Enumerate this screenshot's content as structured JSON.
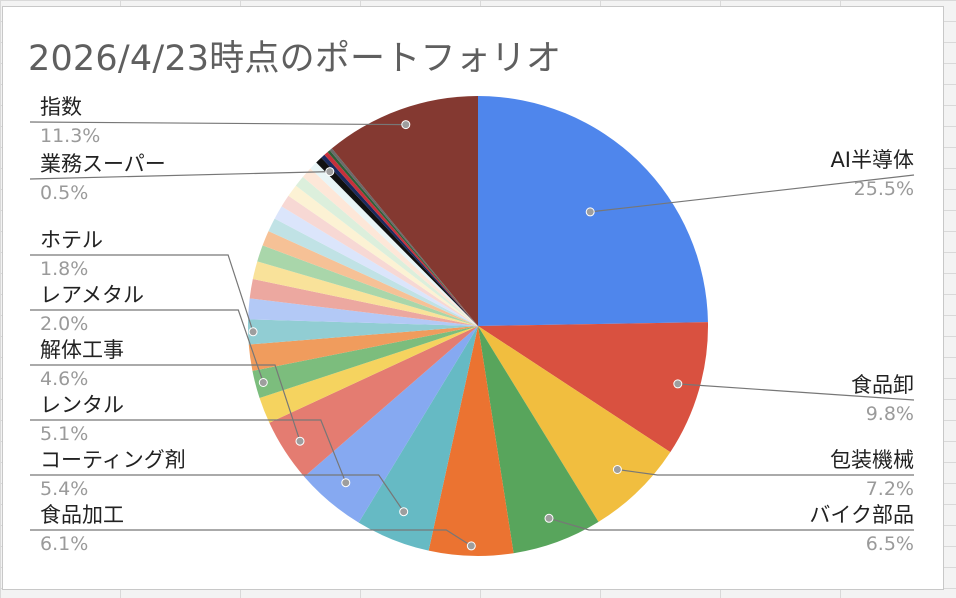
{
  "chart_data": {
    "type": "pie",
    "title": "2026/4/23時点のポートフォリオ",
    "start_angle_deg": 0,
    "direction": "clockwise",
    "slices": [
      {
        "label": "AI半導体",
        "value": 25.5,
        "color": "#4f86ec"
      },
      {
        "label": "食品卸",
        "value": 9.8,
        "color": "#d95140"
      },
      {
        "label": "包装機械",
        "value": 7.2,
        "color": "#f1be3f"
      },
      {
        "label": "バイク部品",
        "value": 6.5,
        "color": "#58a55c"
      },
      {
        "label": "食品加工",
        "value": 6.1,
        "color": "#eb7331"
      },
      {
        "label": "コーティング剤",
        "value": 5.4,
        "color": "#66bac4"
      },
      {
        "label": "レンタル",
        "value": 5.1,
        "color": "#86a9f1"
      },
      {
        "label": "解体工事",
        "value": 4.6,
        "color": "#e47c71"
      },
      {
        "label": "",
        "value": 1.9,
        "color": "#f5d35f"
      },
      {
        "label": "レアメタル",
        "value": 2.0,
        "color": "#7cbd7d"
      },
      {
        "label": "",
        "value": 1.9,
        "color": "#f09c5d"
      },
      {
        "label": "ホテル",
        "value": 1.8,
        "color": "#91cdd3"
      },
      {
        "label": "",
        "value": 1.5,
        "color": "#b3c9f6"
      },
      {
        "label": "",
        "value": 1.4,
        "color": "#eca8a0"
      },
      {
        "label": "",
        "value": 1.3,
        "color": "#f9e29a"
      },
      {
        "label": "",
        "value": 1.2,
        "color": "#a9d6aa"
      },
      {
        "label": "",
        "value": 1.1,
        "color": "#f6c196"
      },
      {
        "label": "",
        "value": 1.0,
        "color": "#c0e2e5"
      },
      {
        "label": "",
        "value": 1.0,
        "color": "#dbe5fb"
      },
      {
        "label": "",
        "value": 0.9,
        "color": "#f7d8d4"
      },
      {
        "label": "",
        "value": 0.9,
        "color": "#fcf2d4"
      },
      {
        "label": "",
        "value": 0.8,
        "color": "#dcefdc"
      },
      {
        "label": "",
        "value": 0.8,
        "color": "#fde7d8"
      },
      {
        "label": "",
        "value": 0.6,
        "color": "#e9f5f6"
      },
      {
        "label": "業務スーパー",
        "value": 0.5,
        "color": "#111111"
      },
      {
        "label": "",
        "value": 0.3,
        "color": "#1b2a5e"
      },
      {
        "label": "",
        "value": 0.3,
        "color": "#c7303b"
      },
      {
        "label": "",
        "value": 0.2,
        "color": "#2e5f36"
      },
      {
        "label": "",
        "value": 0.2,
        "color": "#6b6b6b"
      },
      {
        "label": "指数",
        "value": 11.3,
        "color": "#843931"
      }
    ],
    "labels": [
      {
        "slice": 0,
        "name": "AI半導体",
        "pct": "25.5%",
        "side": "right"
      },
      {
        "slice": 1,
        "name": "食品卸",
        "pct": "9.8%",
        "side": "right"
      },
      {
        "slice": 2,
        "name": "包装機械",
        "pct": "7.2%",
        "side": "right"
      },
      {
        "slice": 3,
        "name": "バイク部品",
        "pct": "6.5%",
        "side": "right"
      },
      {
        "slice": 4,
        "name": "食品加工",
        "pct": "6.1%",
        "side": "left"
      },
      {
        "slice": 5,
        "name": "コーティング剤",
        "pct": "5.4%",
        "side": "left"
      },
      {
        "slice": 6,
        "name": "レンタル",
        "pct": "5.1%",
        "side": "left"
      },
      {
        "slice": 7,
        "name": "解体工事",
        "pct": "4.6%",
        "side": "left"
      },
      {
        "slice": 9,
        "name": "レアメタル",
        "pct": "2.0%",
        "side": "left"
      },
      {
        "slice": 11,
        "name": "ホテル",
        "pct": "1.8%",
        "side": "left"
      },
      {
        "slice": 24,
        "name": "業務スーパー",
        "pct": "0.5%",
        "side": "left"
      },
      {
        "slice": 29,
        "name": "指数",
        "pct": "11.3%",
        "side": "left"
      }
    ]
  }
}
